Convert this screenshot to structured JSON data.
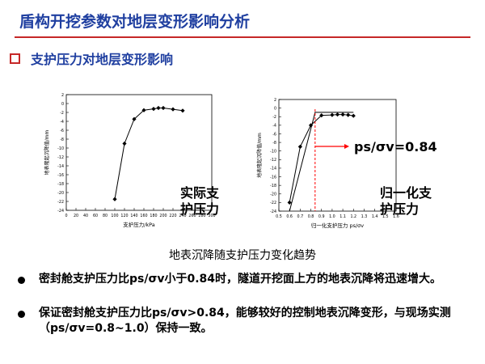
{
  "slide": {
    "title": "盾构开挖参数对地层变形影响分析",
    "section_heading": "支护压力对地层变形影响",
    "caption": "地表沉降随支护压力变化趋势"
  },
  "colors": {
    "title": "#1f3fa0",
    "rule": "#c62828",
    "marker": "#ff0000"
  },
  "annotations": {
    "actual_pressure_line1": "实际支",
    "actual_pressure_line2": "护压力",
    "normalized_pressure_line1": "归一化支",
    "normalized_pressure_line2": "护压力",
    "threshold_label": "ps/σv=0.84"
  },
  "bullets": [
    "密封舱支护压力比ps/σv小于0.84时，隧道开挖面上方的地表沉降将迅速增大。",
    "保证密封舱支护压力比ps/σv>0.84，能够较好的控制地表沉降变形，与现场实测（ps/σv=0.8~1.0）保持一致。"
  ],
  "chart_data": [
    {
      "type": "line",
      "xlabel": "支护压力/kPa",
      "ylabel": "地表隆起沉降值/mm",
      "xlim": [
        0,
        300
      ],
      "ylim": [
        -24,
        2
      ],
      "xticks": [
        "0",
        "20",
        "40",
        "60",
        "80",
        "100",
        "120",
        "140",
        "160",
        "180",
        "200",
        "220",
        "240",
        "260",
        "280",
        "300"
      ],
      "yticks": [
        "2",
        "0",
        "-2",
        "-4",
        "-6",
        "-8",
        "-10",
        "-12",
        "-14",
        "-16",
        "-18",
        "-20",
        "-22",
        "-24"
      ],
      "series": [
        {
          "x": [
            100,
            120,
            140,
            160,
            180,
            190,
            200,
            220,
            240
          ],
          "y": [
            -21.5,
            -9.0,
            -3.5,
            -1.5,
            -1.2,
            -1.0,
            -1.0,
            -1.3,
            -1.6
          ]
        }
      ]
    },
    {
      "type": "line",
      "xlabel": "归一化支护压力 ps/σv",
      "ylabel": "地表隆起沉降值/mm",
      "xlim": [
        0.5,
        1.6
      ],
      "ylim": [
        -24,
        2
      ],
      "xticks": [
        "0.5",
        "0.6",
        "0.7",
        "0.8",
        "0.9",
        "1.0",
        "1.1",
        "1.2",
        "1.3",
        "1.4",
        "1.5",
        "1.6"
      ],
      "yticks": [
        "2",
        "0",
        "-2",
        "-4",
        "-6",
        "-8",
        "-10",
        "-12",
        "-14",
        "-16",
        "-18",
        "-20",
        "-22",
        "-24"
      ],
      "threshold_x": 0.84,
      "series": [
        {
          "x": [
            0.6,
            0.7,
            0.8,
            0.9,
            1.0,
            1.05,
            1.1,
            1.15,
            1.2
          ],
          "y": [
            -22.0,
            -9.0,
            -4.0,
            -1.7,
            -1.6,
            -1.5,
            -1.5,
            -1.6,
            -1.8
          ]
        },
        {
          "x": [
            0.6,
            0.84,
            1.2
          ],
          "y": [
            -24.0,
            -1.0,
            -1.0
          ]
        }
      ]
    }
  ]
}
